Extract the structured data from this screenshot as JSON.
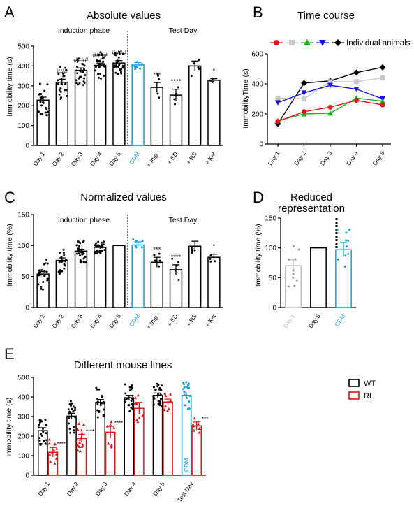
{
  "figure": {
    "panels": {
      "A": {
        "letter": "A",
        "title": "Absolute values",
        "ylabel": "Immobility time (s)",
        "group_labels": [
          "Induction phase",
          "Test Day"
        ]
      },
      "B": {
        "letter": "B",
        "title": "Time course",
        "ylabel": "ImmobilityTime (s)",
        "legend_label": "Individual animals"
      },
      "C": {
        "letter": "C",
        "title": "Normalized values",
        "ylabel": "Immobility time (%)",
        "group_labels": [
          "Induction phase",
          "Test Day"
        ]
      },
      "D": {
        "letter": "D",
        "title_lines": [
          "Reduced",
          "representation"
        ],
        "ylabel": "Immobility time (%)"
      },
      "E": {
        "letter": "E",
        "title": "Different mouse lines",
        "ylabel": "immobility time (s)"
      }
    }
  },
  "chart_data": [
    {
      "panel": "A",
      "type": "bar",
      "title": "Absolute values",
      "ylabel": "Immobility time (s)",
      "ylim": [
        0,
        500
      ],
      "yticks": [
        0,
        100,
        200,
        300,
        400,
        500
      ],
      "categories": [
        "Day 1",
        "Day 2",
        "Day 3",
        "Day 4",
        "Day 5",
        "CDM",
        "+ Imp.",
        "+ SD",
        "+ RS",
        "+ Ket"
      ],
      "values": [
        228,
        318,
        378,
        403,
        415,
        405,
        292,
        253,
        400,
        328
      ],
      "errors": [
        15,
        15,
        12,
        12,
        12,
        12,
        25,
        30,
        25,
        8
      ],
      "significance": [
        "",
        "###",
        "####",
        "####",
        "####",
        "",
        "***",
        "****",
        "",
        "*"
      ],
      "colors": {
        "default": "#000000",
        "CDM": "#1a9ad6"
      }
    },
    {
      "panel": "B",
      "type": "line",
      "title": "Time course",
      "ylabel": "ImmobilityTime (s)",
      "ylim": [
        0,
        600
      ],
      "yticks": [
        0,
        200,
        400,
        600
      ],
      "x": [
        "Day 1",
        "Day 2",
        "Day 3",
        "Day 4",
        "Day 5"
      ],
      "series": [
        {
          "values": [
            135,
            405,
            420,
            475,
            510
          ],
          "color": "#000000",
          "marker": "diamond"
        },
        {
          "values": [
            305,
            300,
            415,
            415,
            440
          ],
          "color": "#c8c8c8",
          "marker": "square"
        },
        {
          "values": [
            275,
            340,
            390,
            365,
            300
          ],
          "color": "#1515e0",
          "marker": "triangle-down"
        },
        {
          "values": [
            155,
            200,
            205,
            305,
            285
          ],
          "color": "#13b313",
          "marker": "triangle-up"
        },
        {
          "values": [
            150,
            215,
            245,
            290,
            260
          ],
          "color": "#e01515",
          "marker": "circle"
        }
      ]
    },
    {
      "panel": "C",
      "type": "bar",
      "title": "Normalized values",
      "ylabel": "Immobility time (%)",
      "ylim": [
        0,
        150
      ],
      "yticks": [
        0,
        50,
        100,
        150
      ],
      "categories": [
        "Day 1",
        "Day 2",
        "Day 3",
        "Day 4",
        "Day 5",
        "CDM",
        "+ Imp.",
        "+ SD",
        "+ RS",
        "+ Ket"
      ],
      "values": [
        54,
        76,
        91,
        97,
        100,
        101,
        73,
        61,
        99,
        81
      ],
      "errors": [
        4,
        4,
        3,
        2,
        0,
        5,
        8,
        8,
        8,
        5
      ],
      "significance": [
        "",
        "",
        "",
        "",
        "",
        "",
        "***",
        "****",
        "",
        "*"
      ],
      "colors": {
        "default": "#000000",
        "CDM": "#1a9ad6"
      }
    },
    {
      "panel": "D",
      "type": "bar",
      "title": "Reduced representation",
      "ylabel": "Immobility time (%)",
      "ylim": [
        0,
        150
      ],
      "yticks": [
        0,
        50,
        100,
        150
      ],
      "categories": [
        "Day 1",
        "Day 5",
        "CDM"
      ],
      "values": [
        70,
        100,
        97
      ],
      "errors": [
        10,
        0,
        12
      ],
      "colors": {
        "Day 1": "#bdbdbd",
        "Day 5": "#000000",
        "CDM": "#1a9ad6"
      }
    },
    {
      "panel": "E",
      "type": "bar",
      "title": "Different mouse lines",
      "ylabel": "immobility time (s)",
      "ylim": [
        0,
        500
      ],
      "yticks": [
        0,
        100,
        200,
        300,
        400,
        500
      ],
      "categories": [
        "Day 1",
        "Day 2",
        "Day 3",
        "Day 4",
        "Day 5",
        "Test Day"
      ],
      "series": [
        {
          "name": "WT",
          "values": [
            228,
            302,
            372,
            396,
            408,
            408
          ],
          "errors": [
            15,
            15,
            15,
            12,
            12,
            12
          ],
          "color": "#000000"
        },
        {
          "name": "RL",
          "values": [
            117,
            188,
            220,
            342,
            374,
            252
          ],
          "errors": [
            25,
            20,
            30,
            30,
            15,
            20
          ],
          "color": "#e01515"
        }
      ],
      "significance": [
        "****",
        "****",
        "****",
        "",
        "",
        "***"
      ],
      "inbar_label": "CDM",
      "legend": "top-right"
    }
  ]
}
